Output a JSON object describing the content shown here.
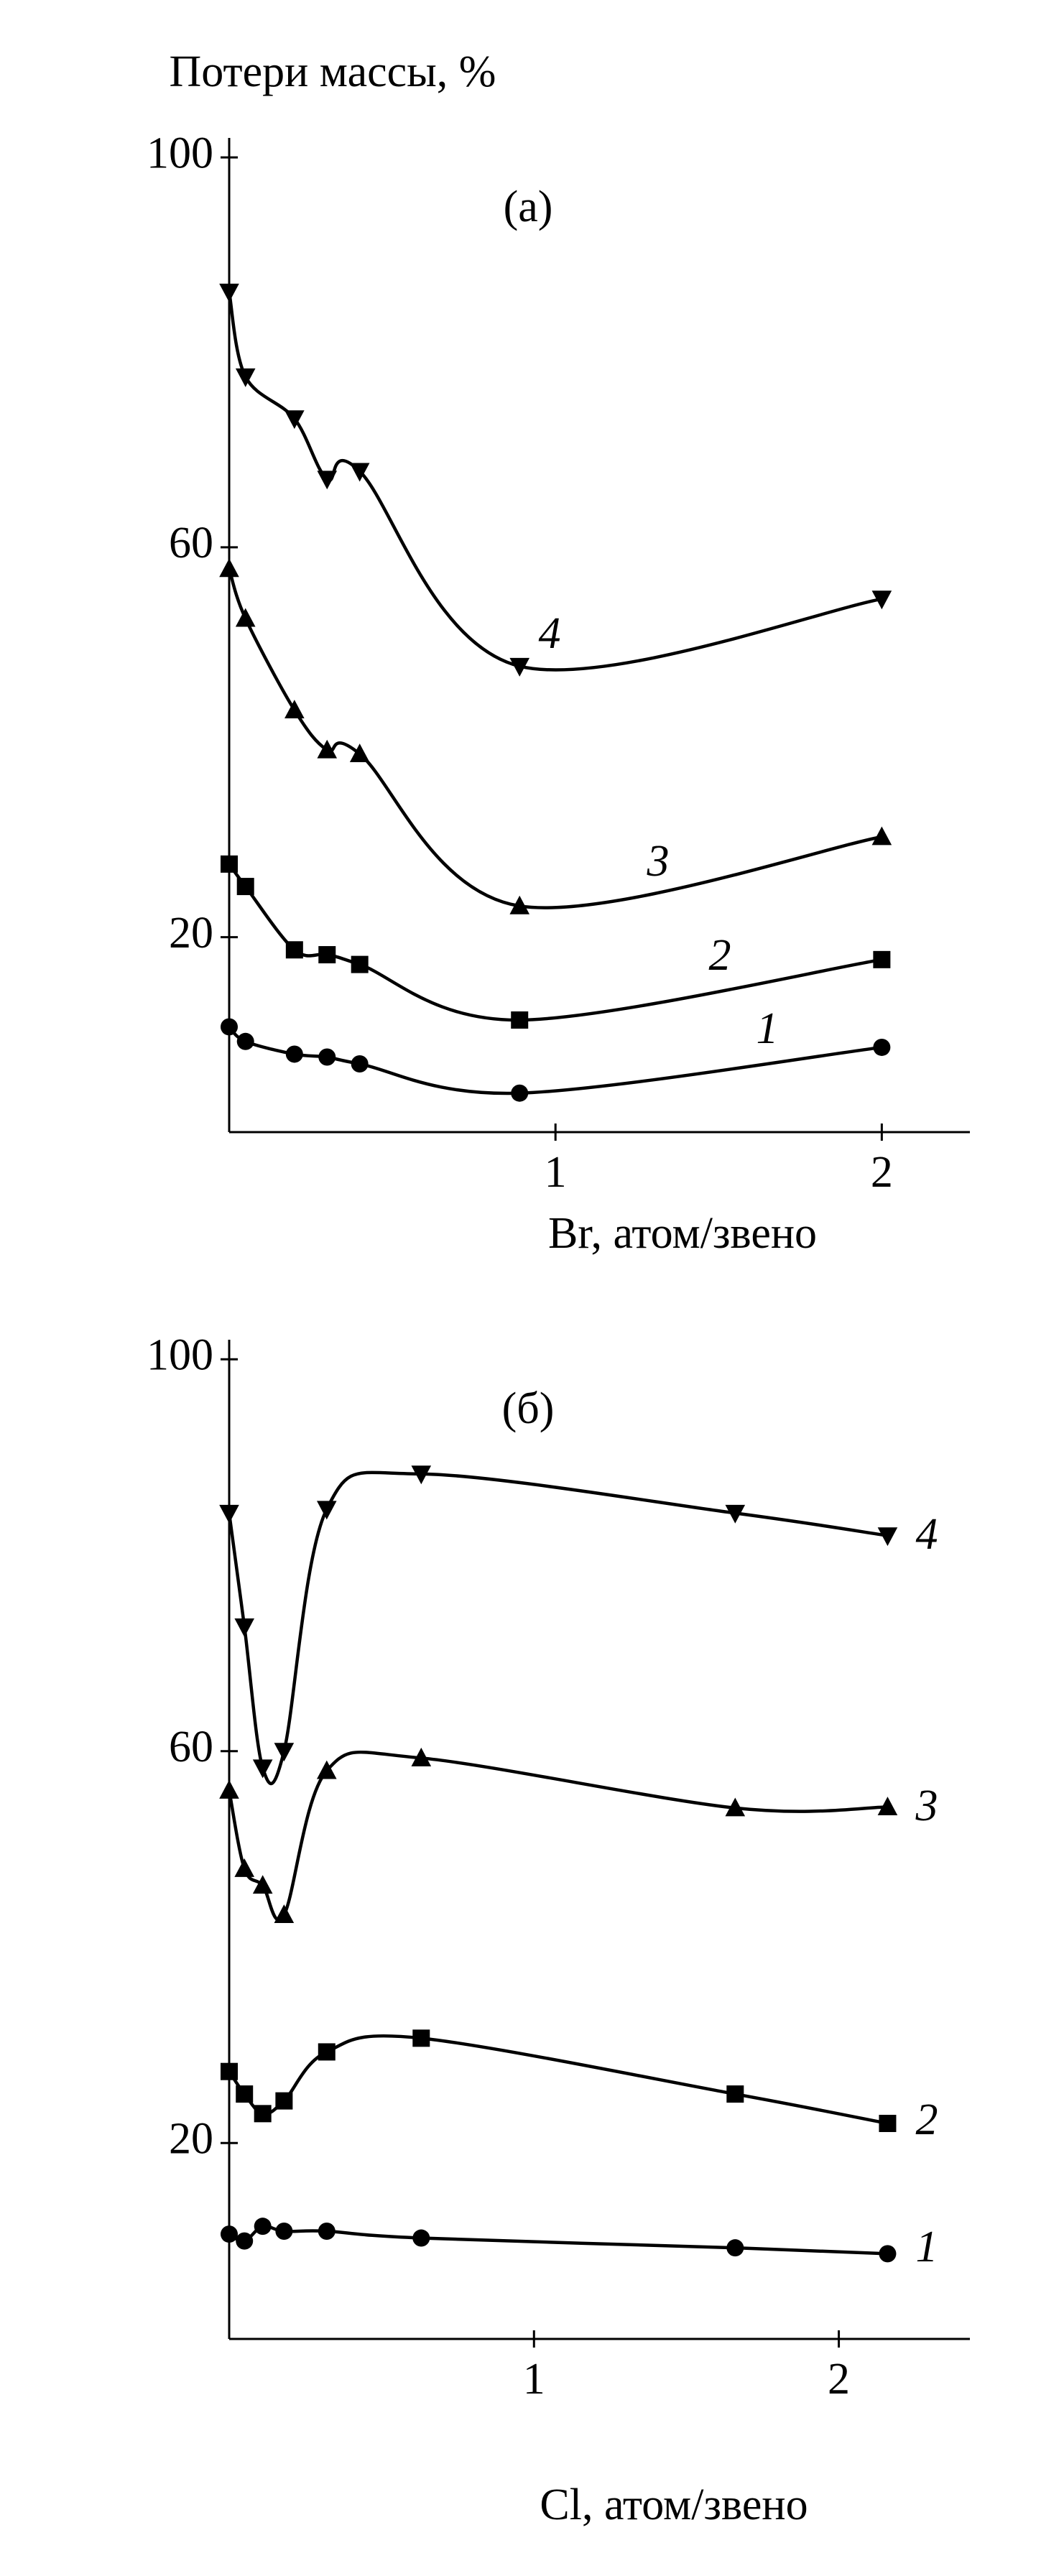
{
  "chart_data": [
    {
      "type": "line",
      "title": "(а)",
      "y_label": "Потери массы, %",
      "x_label": "Br, атом/звено",
      "x": [
        0,
        0.05,
        0.2,
        0.3,
        0.4,
        0.89,
        2
      ],
      "xlim": [
        0,
        2.27
      ],
      "xticks": [
        1,
        2
      ],
      "ylim": [
        0,
        102
      ],
      "yticks": [
        20,
        60,
        100
      ],
      "series": [
        {
          "name": "1",
          "color": "#000000",
          "marker": "circle",
          "values": [
            10.8,
            9.3,
            8,
            7.7,
            7,
            4,
            8.7
          ]
        },
        {
          "name": "2",
          "color": "#000000",
          "marker": "square",
          "values": [
            27.5,
            25.2,
            18.7,
            18.2,
            17.2,
            11.5,
            17.7
          ]
        },
        {
          "name": "3",
          "color": "#000000",
          "marker": "triangle-up",
          "values": [
            57.8,
            52.7,
            43.3,
            39.2,
            38.8,
            23.2,
            30.3
          ]
        },
        {
          "name": "4",
          "color": "#000000",
          "marker": "triangle-down",
          "values": [
            86.2,
            77.5,
            73.2,
            67,
            67.8,
            47.8,
            54.7
          ]
        }
      ]
    },
    {
      "type": "line",
      "title": "(б)",
      "x_label": "Cl, атом/звено",
      "x": [
        0,
        0.05,
        0.11,
        0.18,
        0.32,
        0.63,
        1.66,
        2.16
      ],
      "xlim": [
        0,
        2.43
      ],
      "xticks": [
        1,
        2
      ],
      "ylim": [
        0,
        102
      ],
      "yticks": [
        20,
        60,
        100
      ],
      "series": [
        {
          "name": "1",
          "color": "#000000",
          "marker": "circle",
          "values": [
            10.7,
            10,
            11.5,
            11,
            11,
            10.3,
            9.3,
            8.7
          ]
        },
        {
          "name": "2",
          "color": "#000000",
          "marker": "square",
          "values": [
            27.3,
            25,
            23,
            24.3,
            29.3,
            30.7,
            25,
            22
          ]
        },
        {
          "name": "3",
          "color": "#000000",
          "marker": "triangle-up",
          "values": [
            56,
            48,
            46.3,
            43.3,
            58,
            59.3,
            54.2,
            54.3
          ]
        },
        {
          "name": "4",
          "color": "#000000",
          "marker": "triangle-down",
          "values": [
            84.3,
            72.7,
            58.3,
            60,
            84.7,
            88.3,
            84.3,
            82
          ]
        }
      ]
    }
  ]
}
